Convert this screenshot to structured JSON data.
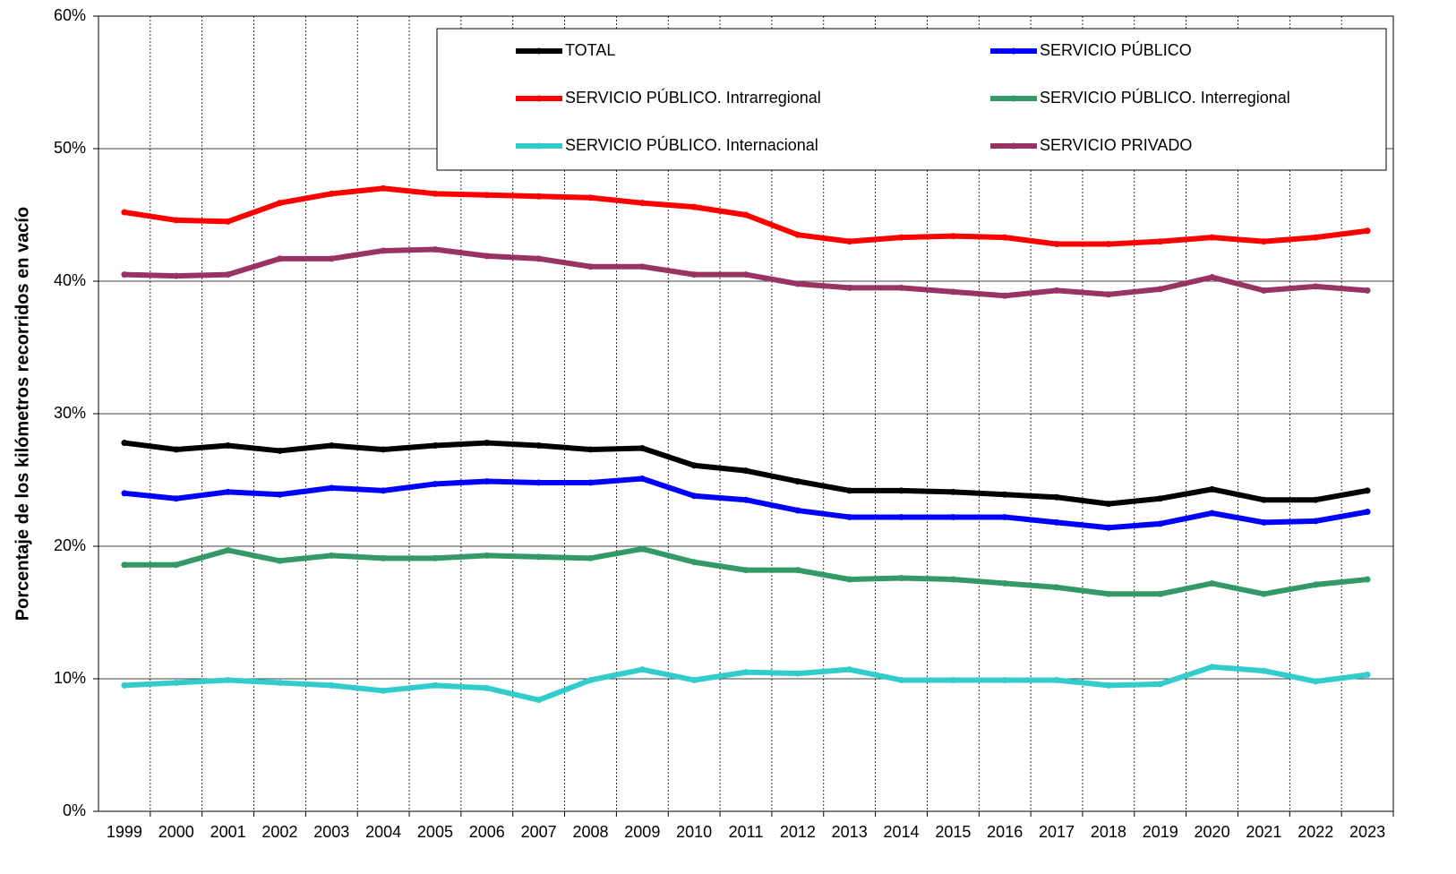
{
  "chart_data": {
    "type": "line",
    "y_label": "Porcentaje de los kilómetros recorridos en vacío",
    "categories": [
      "1999",
      "2000",
      "2001",
      "2002",
      "2003",
      "2004",
      "2005",
      "2006",
      "2007",
      "2008",
      "2009",
      "2010",
      "2011",
      "2012",
      "2013",
      "2014",
      "2015",
      "2016",
      "2017",
      "2018",
      "2019",
      "2020",
      "2021",
      "2022",
      "2023"
    ],
    "ylim": [
      0,
      60
    ],
    "yticks": [
      {
        "value": 0,
        "label": "0%"
      },
      {
        "value": 10,
        "label": "10%"
      },
      {
        "value": 20,
        "label": "20%"
      },
      {
        "value": 30,
        "label": "30%"
      },
      {
        "value": 40,
        "label": "40%"
      },
      {
        "value": 50,
        "label": "50%"
      },
      {
        "value": 60,
        "label": "60%"
      }
    ],
    "grid": true,
    "series": [
      {
        "name": "TOTAL",
        "color": "#000000",
        "values": [
          27.8,
          27.3,
          27.6,
          27.2,
          27.6,
          27.3,
          27.6,
          27.8,
          27.6,
          27.3,
          27.4,
          26.1,
          25.7,
          24.9,
          24.2,
          24.2,
          24.1,
          23.9,
          23.7,
          23.2,
          23.6,
          24.3,
          23.5,
          23.5,
          24.2
        ]
      },
      {
        "name": "SERVICIO PÚBLICO",
        "color": "#0000ff",
        "values": [
          24.0,
          23.6,
          24.1,
          23.9,
          24.4,
          24.2,
          24.7,
          24.9,
          24.8,
          24.8,
          25.1,
          23.8,
          23.5,
          22.7,
          22.2,
          22.2,
          22.2,
          22.2,
          21.8,
          21.4,
          21.7,
          22.5,
          21.8,
          21.9,
          22.6
        ]
      },
      {
        "name": "SERVICIO PÚBLICO. Intrarregional",
        "color": "#ff0000",
        "values": [
          45.2,
          44.6,
          44.5,
          45.9,
          46.6,
          47.0,
          46.6,
          46.5,
          46.4,
          46.3,
          45.9,
          45.6,
          45.0,
          43.5,
          43.0,
          43.3,
          43.4,
          43.3,
          42.8,
          42.8,
          43.0,
          43.3,
          43.0,
          43.3,
          43.8
        ]
      },
      {
        "name": "SERVICIO PÚBLICO. Interregional",
        "color": "#339966",
        "values": [
          18.6,
          18.6,
          19.7,
          18.9,
          19.3,
          19.1,
          19.1,
          19.3,
          19.2,
          19.1,
          19.8,
          18.8,
          18.2,
          18.2,
          17.5,
          17.6,
          17.5,
          17.2,
          16.9,
          16.4,
          16.4,
          17.2,
          16.4,
          17.1,
          17.5
        ]
      },
      {
        "name": "SERVICIO PÚBLICO. Internacional",
        "color": "#33cccc",
        "values": [
          9.5,
          9.7,
          9.9,
          9.7,
          9.5,
          9.1,
          9.5,
          9.3,
          8.4,
          9.9,
          10.7,
          9.9,
          10.5,
          10.4,
          10.7,
          9.9,
          9.9,
          9.9,
          9.9,
          9.5,
          9.6,
          10.9,
          10.6,
          9.8,
          10.3
        ]
      },
      {
        "name": "SERVICIO PRIVADO",
        "color": "#993366",
        "values": [
          40.5,
          40.4,
          40.5,
          41.7,
          41.7,
          42.3,
          42.4,
          41.9,
          41.7,
          41.1,
          41.1,
          40.5,
          40.5,
          39.8,
          39.5,
          39.5,
          39.2,
          38.9,
          39.3,
          39.0,
          39.4,
          40.3,
          39.3,
          39.6,
          39.3
        ]
      }
    ]
  }
}
